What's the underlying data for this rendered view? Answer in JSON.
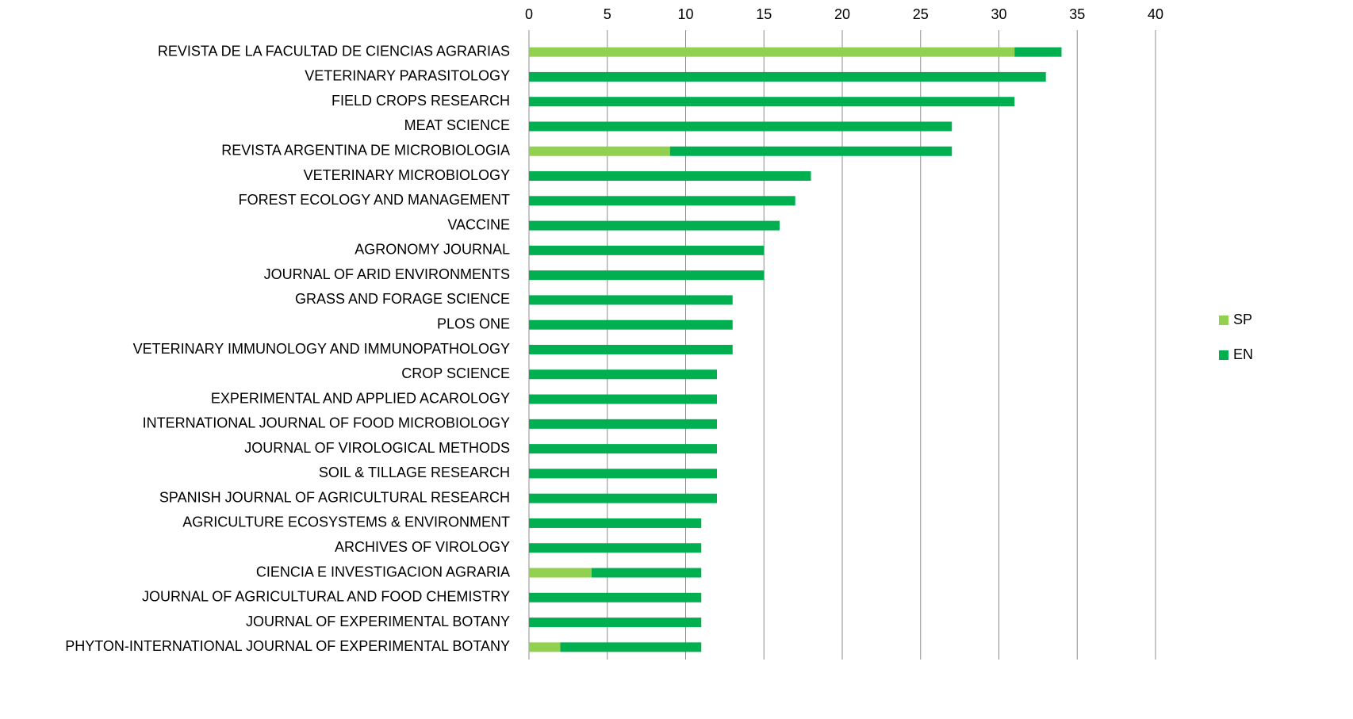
{
  "chart_data": {
    "type": "stacked-barh",
    "categories": [
      "REVISTA DE LA FACULTAD DE CIENCIAS AGRARIAS",
      "VETERINARY PARASITOLOGY",
      "FIELD CROPS RESEARCH",
      "MEAT SCIENCE",
      "REVISTA ARGENTINA DE MICROBIOLOGIA",
      "VETERINARY MICROBIOLOGY",
      "FOREST ECOLOGY AND MANAGEMENT",
      "VACCINE",
      "AGRONOMY JOURNAL",
      "JOURNAL OF ARID ENVIRONMENTS",
      "GRASS AND FORAGE SCIENCE",
      "PLOS ONE",
      "VETERINARY IMMUNOLOGY AND IMMUNOPATHOLOGY",
      "CROP SCIENCE",
      "EXPERIMENTAL AND APPLIED ACAROLOGY",
      "INTERNATIONAL JOURNAL OF FOOD MICROBIOLOGY",
      "JOURNAL OF VIROLOGICAL METHODS",
      "SOIL & TILLAGE RESEARCH",
      "SPANISH JOURNAL OF AGRICULTURAL RESEARCH",
      "AGRICULTURE ECOSYSTEMS & ENVIRONMENT",
      "ARCHIVES OF VIROLOGY",
      "CIENCIA E INVESTIGACION AGRARIA",
      "JOURNAL OF AGRICULTURAL AND FOOD CHEMISTRY",
      "JOURNAL OF EXPERIMENTAL BOTANY",
      "PHYTON-INTERNATIONAL JOURNAL OF EXPERIMENTAL BOTANY"
    ],
    "series": [
      {
        "name": "SP",
        "color": "#92d050",
        "values": [
          31,
          0,
          0,
          0,
          9,
          0,
          0,
          0,
          0,
          0,
          0,
          0,
          0,
          0,
          0,
          0,
          0,
          0,
          0,
          0,
          0,
          4,
          0,
          0,
          2
        ]
      },
      {
        "name": "EN",
        "color": "#00b050",
        "values": [
          3,
          33,
          31,
          27,
          18,
          18,
          17,
          16,
          15,
          15,
          13,
          13,
          13,
          12,
          12,
          12,
          12,
          12,
          12,
          11,
          11,
          7,
          11,
          11,
          9
        ]
      }
    ],
    "xlim": [
      0,
      40
    ],
    "xticks": [
      0,
      5,
      10,
      15,
      20,
      25,
      30,
      35,
      40
    ],
    "grid": true,
    "legend": "right"
  }
}
